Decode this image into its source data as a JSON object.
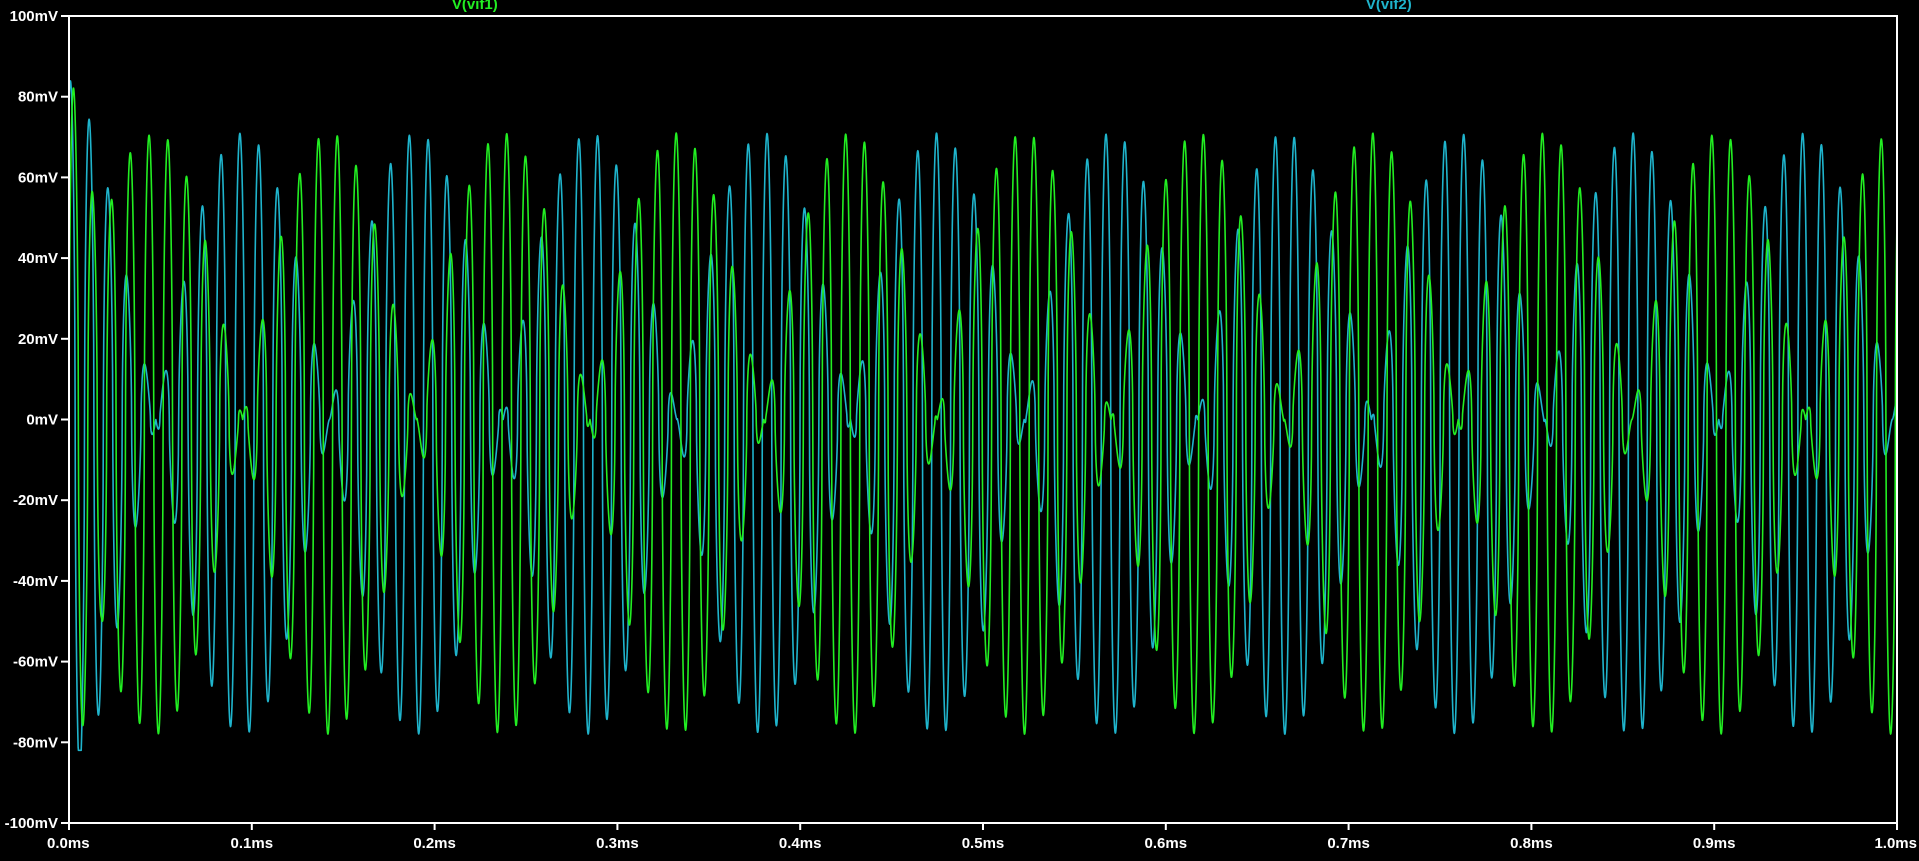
{
  "chart_data": {
    "type": "line",
    "x_tick_labels": [
      "0.0ms",
      "0.1ms",
      "0.2ms",
      "0.3ms",
      "0.4ms",
      "0.5ms",
      "0.6ms",
      "0.7ms",
      "0.8ms",
      "0.9ms",
      "1.0ms"
    ],
    "y_tick_labels": [
      "100mV",
      "80mV",
      "60mV",
      "40mV",
      "20mV",
      "0mV",
      "-20mV",
      "-40mV",
      "-60mV",
      "-80mV",
      "-100mV"
    ],
    "xlim": [
      0.0,
      1.0
    ],
    "ylim": [
      -100,
      100
    ],
    "x_unit": "ms",
    "y_unit": "mV",
    "grid": false,
    "background": "#000000",
    "axis_color": "#ffffff",
    "series": [
      {
        "name": "V(vif1)",
        "color": "#22ee22",
        "carrier_period_ms": 0.0103,
        "envelope_period_ms": 0.19,
        "positive_peak_mV": 71,
        "negative_peak_mV": -78,
        "initial_transient_peak_mV": 90,
        "initial_transient_trough_mV": -87
      },
      {
        "name": "V(vif2)",
        "color": "#1fb4cc",
        "carrier_period_ms": 0.0103,
        "envelope_period_ms": 0.19,
        "positive_peak_mV": 71,
        "negative_peak_mV": -78,
        "initial_transient_peak_mV": 85,
        "initial_transient_trough_mV": -82
      }
    ]
  }
}
